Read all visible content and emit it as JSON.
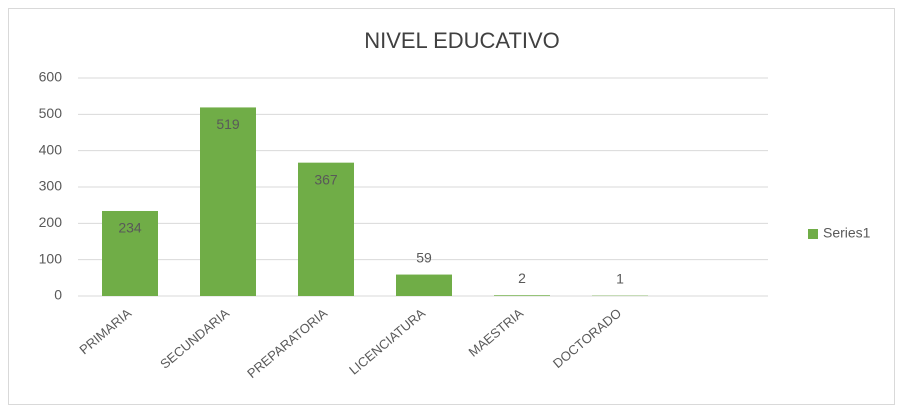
{
  "chart_data": {
    "type": "bar",
    "title": "NIVEL EDUCATIVO",
    "categories": [
      "PRIMARIA",
      "SECUNDARIA",
      "PREPARATORIA",
      "LICENCIATURA",
      "MAESTRIA",
      "DOCTORADO"
    ],
    "series": [
      {
        "name": "Series1",
        "color": "#70ad47",
        "values": [
          234,
          519,
          367,
          59,
          2,
          1
        ]
      }
    ],
    "ylim": [
      0,
      600
    ],
    "yticks": [
      0,
      100,
      200,
      300,
      400,
      500,
      600
    ],
    "grid": true,
    "legend": "right"
  }
}
